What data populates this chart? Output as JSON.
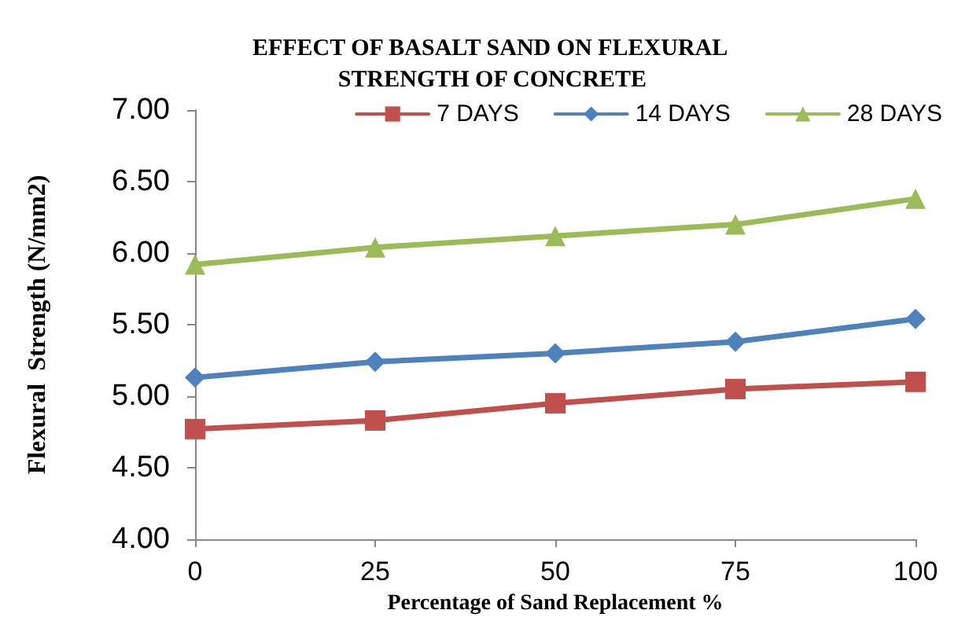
{
  "chart_data": {
    "type": "line",
    "title": "EFFECT OF BASALT SAND ON FLEXURAL STRENGTH OF CONCRETE",
    "xlabel": "Percentage of Sand Replacement %",
    "ylabel": "Flexural  Strength (N/mm2)",
    "x": [
      0,
      25,
      50,
      75,
      100
    ],
    "xlim": [
      0,
      100
    ],
    "xticks": [
      0,
      25,
      50,
      75,
      100
    ],
    "ylim": [
      4,
      7
    ],
    "yticks": [
      {
        "value": 4,
        "label": "4.00"
      },
      {
        "value": 4.5,
        "label": "4.50"
      },
      {
        "value": 5,
        "label": "5.00"
      },
      {
        "value": 5.5,
        "label": "5.50"
      },
      {
        "value": 6,
        "label": "6.00"
      },
      {
        "value": 6.5,
        "label": "6.50"
      },
      {
        "value": 7,
        "label": "7.00"
      }
    ],
    "series": [
      {
        "name": "7 DAYS",
        "color": "#c0504d",
        "marker": "square",
        "values": [
          4.77,
          4.83,
          4.95,
          5.05,
          5.1
        ]
      },
      {
        "name": "14 DAYS",
        "color": "#4f81bd",
        "marker": "diamond",
        "values": [
          5.13,
          5.24,
          5.3,
          5.38,
          5.54
        ]
      },
      {
        "name": "28 DAYS",
        "color": "#9bbb59",
        "marker": "triangle",
        "values": [
          5.92,
          6.04,
          6.12,
          6.2,
          6.38
        ]
      }
    ],
    "grid": false,
    "legend": "top right",
    "line_style": "solid"
  }
}
